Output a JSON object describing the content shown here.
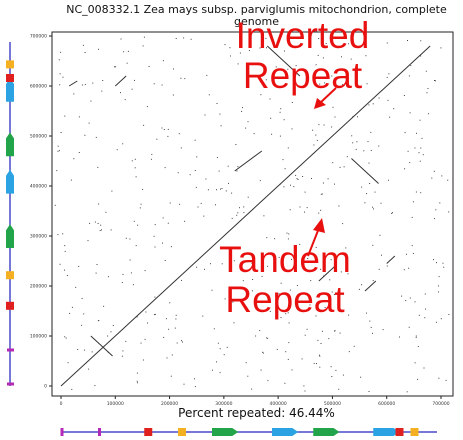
{
  "title": "NC_008332.1 Zea mays subsp. parviglumis mitochondrion, complete genome",
  "footer_text": "Percent repeated: 46.44%",
  "annotations": {
    "inverted": "Inverted\nRepeat",
    "tandem": "Tandem\nRepeat",
    "color": "#e8100f"
  },
  "chart_data": {
    "type": "scatter",
    "subtype": "dot-plot",
    "x_ticks": [
      "0",
      "100000",
      "200000",
      "300000",
      "400000",
      "500000",
      "600000",
      "700000"
    ],
    "y_ticks": [
      "0",
      "100000",
      "200000",
      "300000",
      "400000",
      "500000",
      "600000",
      "700000"
    ],
    "xlim": [
      0,
      700000
    ],
    "ylim": [
      0,
      700000
    ],
    "grid": false,
    "main_diagonal": [
      [
        0,
        0
      ],
      [
        680000,
        680000
      ]
    ],
    "repeat_segments": [
      {
        "kind": "inverted",
        "from": [
          380000,
          680000
        ],
        "to": [
          440000,
          620000
        ]
      },
      {
        "kind": "inverted",
        "from": [
          535000,
          455000
        ],
        "to": [
          585000,
          405000
        ]
      },
      {
        "kind": "inverted",
        "from": [
          55000,
          100000
        ],
        "to": [
          95000,
          60000
        ]
      },
      {
        "kind": "tandem",
        "from": [
          475000,
          210000
        ],
        "to": [
          505000,
          240000
        ]
      },
      {
        "kind": "tandem",
        "from": [
          320000,
          430000
        ],
        "to": [
          370000,
          470000
        ]
      },
      {
        "kind": "tandem",
        "from": [
          100000,
          600000
        ],
        "to": [
          120000,
          620000
        ]
      },
      {
        "kind": "tandem",
        "from": [
          560000,
          190000
        ],
        "to": [
          580000,
          210000
        ]
      },
      {
        "kind": "tandem",
        "from": [
          600000,
          245000
        ],
        "to": [
          615000,
          260000
        ]
      },
      {
        "kind": "tandem",
        "from": [
          15000,
          600000
        ],
        "to": [
          30000,
          610000
        ]
      }
    ]
  },
  "genome_features": [
    {
      "pos": 0.0,
      "type": "bar",
      "color": "#b42ab4"
    },
    {
      "pos": 0.1,
      "type": "bar",
      "color": "#b42ab4"
    },
    {
      "pos": 0.23,
      "type": "box",
      "color": "#e01f1f"
    },
    {
      "pos": 0.32,
      "type": "box",
      "color": "#f5b021"
    },
    {
      "pos": 0.4,
      "type": "arrow",
      "color": "#22a54a",
      "len": 0.07
    },
    {
      "pos": 0.56,
      "type": "arrow",
      "color": "#2ba3e3",
      "len": 0.07
    },
    {
      "pos": 0.67,
      "type": "arrow",
      "color": "#22a54a",
      "len": 0.07
    },
    {
      "pos": 0.83,
      "type": "arrow",
      "color": "#2ba3e3",
      "len": 0.07
    },
    {
      "pos": 0.9,
      "type": "box",
      "color": "#e01f1f"
    },
    {
      "pos": 0.94,
      "type": "box",
      "color": "#f5b021"
    }
  ]
}
